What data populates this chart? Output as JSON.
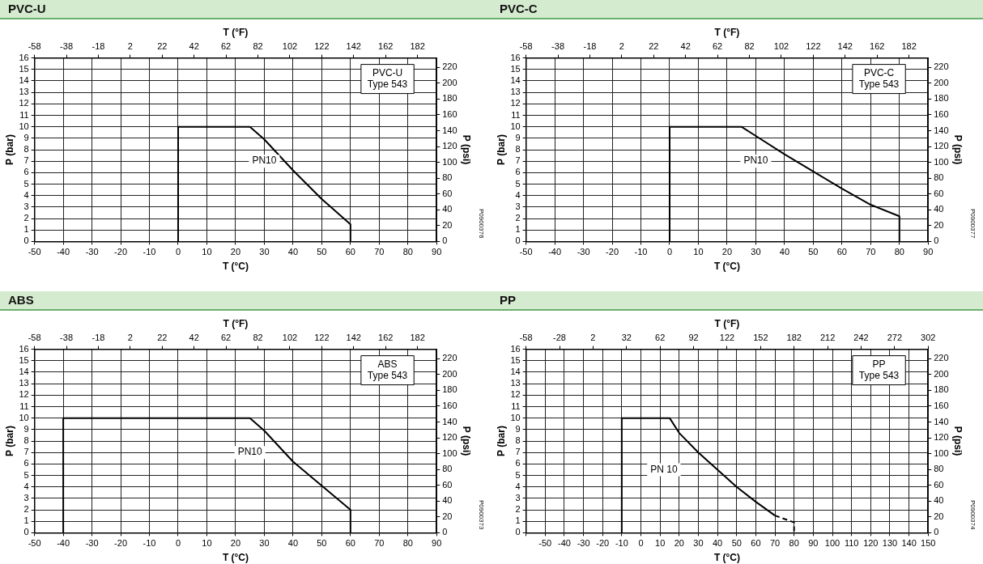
{
  "chart_data": [
    {
      "type": "line",
      "title": "PVC-U",
      "xlabel": "T (°C)",
      "x2label": "T (°F)",
      "ylabel": "P (bar)",
      "y2label": "P (psi)",
      "series": [
        {
          "color": "#000000",
          "x": [
            0,
            0,
            25,
            30,
            40,
            50,
            60,
            60
          ],
          "values": [
            0,
            10,
            10,
            8.9,
            6.2,
            3.7,
            1.5,
            0
          ]
        }
      ],
      "xlim": [
        -50,
        90
      ],
      "xticks": [
        -50,
        -40,
        -30,
        -20,
        -10,
        0,
        10,
        20,
        30,
        40,
        50,
        60,
        70,
        80,
        90
      ],
      "x2lim": [
        -58,
        194
      ],
      "x2ticks": [
        -58,
        -38,
        -18,
        2,
        22,
        42,
        62,
        82,
        102,
        122,
        142,
        162,
        182
      ],
      "ylim": [
        0,
        16
      ],
      "yticks": [
        0,
        1,
        2,
        3,
        4,
        5,
        6,
        7,
        8,
        9,
        10,
        11,
        12,
        13,
        14,
        15,
        16
      ],
      "y2lim": [
        0,
        232
      ],
      "y2ticks": [
        0,
        20,
        40,
        60,
        80,
        100,
        120,
        140,
        160,
        180,
        200,
        220
      ],
      "grid": true,
      "marker": "none",
      "line_style": "solid",
      "annotations": [
        "PVC-U\nType 543",
        "P0900376",
        {
          "text": "PN10",
          "x": 30,
          "y": 7
        }
      ]
    },
    {
      "type": "line",
      "title": "PVC-C",
      "xlabel": "T (°C)",
      "x2label": "T (°F)",
      "ylabel": "P (bar)",
      "y2label": "P (psi)",
      "series": [
        {
          "color": "#000000",
          "x": [
            0,
            0,
            25,
            30,
            40,
            50,
            60,
            70,
            80,
            80
          ],
          "values": [
            0,
            10,
            10,
            9.2,
            7.6,
            6.1,
            4.6,
            3.2,
            2.2,
            0
          ]
        }
      ],
      "xlim": [
        -50,
        90
      ],
      "xticks": [
        -50,
        -40,
        -30,
        -20,
        -10,
        0,
        10,
        20,
        30,
        40,
        50,
        60,
        70,
        80,
        90
      ],
      "x2lim": [
        -58,
        194
      ],
      "x2ticks": [
        -58,
        -38,
        -18,
        2,
        22,
        42,
        62,
        82,
        102,
        122,
        142,
        162,
        182
      ],
      "ylim": [
        0,
        16
      ],
      "yticks": [
        0,
        1,
        2,
        3,
        4,
        5,
        6,
        7,
        8,
        9,
        10,
        11,
        12,
        13,
        14,
        15,
        16
      ],
      "y2lim": [
        0,
        232
      ],
      "y2ticks": [
        0,
        20,
        40,
        60,
        80,
        100,
        120,
        140,
        160,
        180,
        200,
        220
      ],
      "grid": true,
      "marker": "none",
      "line_style": "solid",
      "annotations": [
        "PVC-C\nType 543",
        "P0900377",
        {
          "text": "PN10",
          "x": 30,
          "y": 7
        }
      ]
    },
    {
      "type": "line",
      "title": "ABS",
      "xlabel": "T (°C)",
      "x2label": "T (°F)",
      "ylabel": "P (bar)",
      "y2label": "P (psi)",
      "series": [
        {
          "color": "#000000",
          "x": [
            -40,
            -40,
            25,
            30,
            40,
            50,
            60,
            60
          ],
          "values": [
            0,
            10,
            10,
            8.9,
            6.2,
            4.1,
            2,
            0
          ]
        }
      ],
      "xlim": [
        -50,
        90
      ],
      "xticks": [
        -50,
        -40,
        -30,
        -20,
        -10,
        0,
        10,
        20,
        30,
        40,
        50,
        60,
        70,
        80,
        90
      ],
      "x2lim": [
        -58,
        194
      ],
      "x2ticks": [
        -58,
        -38,
        -18,
        2,
        22,
        42,
        62,
        82,
        102,
        122,
        142,
        162,
        182
      ],
      "ylim": [
        0,
        16
      ],
      "yticks": [
        0,
        1,
        2,
        3,
        4,
        5,
        6,
        7,
        8,
        9,
        10,
        11,
        12,
        13,
        14,
        15,
        16
      ],
      "y2lim": [
        0,
        232
      ],
      "y2ticks": [
        0,
        20,
        40,
        60,
        80,
        100,
        120,
        140,
        160,
        180,
        200,
        220
      ],
      "grid": true,
      "marker": "none",
      "line_style": "solid",
      "annotations": [
        "ABS\nType 543",
        "P0900373",
        {
          "text": "PN10",
          "x": 25,
          "y": 7
        }
      ]
    },
    {
      "type": "line",
      "title": "PP",
      "xlabel": "T (°C)",
      "x2label": "T (°F)",
      "ylabel": "P (bar)",
      "y2label": "P (psi)",
      "series": [
        {
          "color": "#000000",
          "x": [
            -10,
            -10,
            15,
            20,
            30,
            40,
            50,
            60,
            70
          ],
          "values": [
            0,
            10,
            10,
            8.7,
            7,
            5.5,
            4,
            2.7,
            1.5
          ]
        },
        {
          "color": "#000000",
          "line_style": "dashed",
          "x": [
            70,
            80,
            80
          ],
          "values": [
            1.5,
            0.9,
            0
          ]
        }
      ],
      "xlim": [
        -60,
        150
      ],
      "xticks": [
        {
          "value": -60,
          "label": null
        },
        -50,
        -40,
        -30,
        -20,
        -10,
        0,
        10,
        20,
        30,
        40,
        50,
        60,
        70,
        80,
        90,
        100,
        110,
        120,
        130,
        140,
        150
      ],
      "x2lim": [
        -58,
        302
      ],
      "x2ticks": [
        -58,
        -28,
        2,
        32,
        62,
        92,
        122,
        152,
        182,
        212,
        242,
        272,
        302
      ],
      "ylim": [
        0,
        16
      ],
      "yticks": [
        0,
        1,
        2,
        3,
        4,
        5,
        6,
        7,
        8,
        9,
        10,
        11,
        12,
        13,
        14,
        15,
        16
      ],
      "y2lim": [
        0,
        232
      ],
      "y2ticks": [
        0,
        20,
        40,
        60,
        80,
        100,
        120,
        140,
        160,
        180,
        200,
        220
      ],
      "grid": true,
      "marker": "none",
      "line_style": "solid",
      "annotations": [
        "PP\nType 543",
        "P0900374",
        {
          "text": "PN 10",
          "x": 12,
          "y": 5.5
        }
      ]
    }
  ]
}
